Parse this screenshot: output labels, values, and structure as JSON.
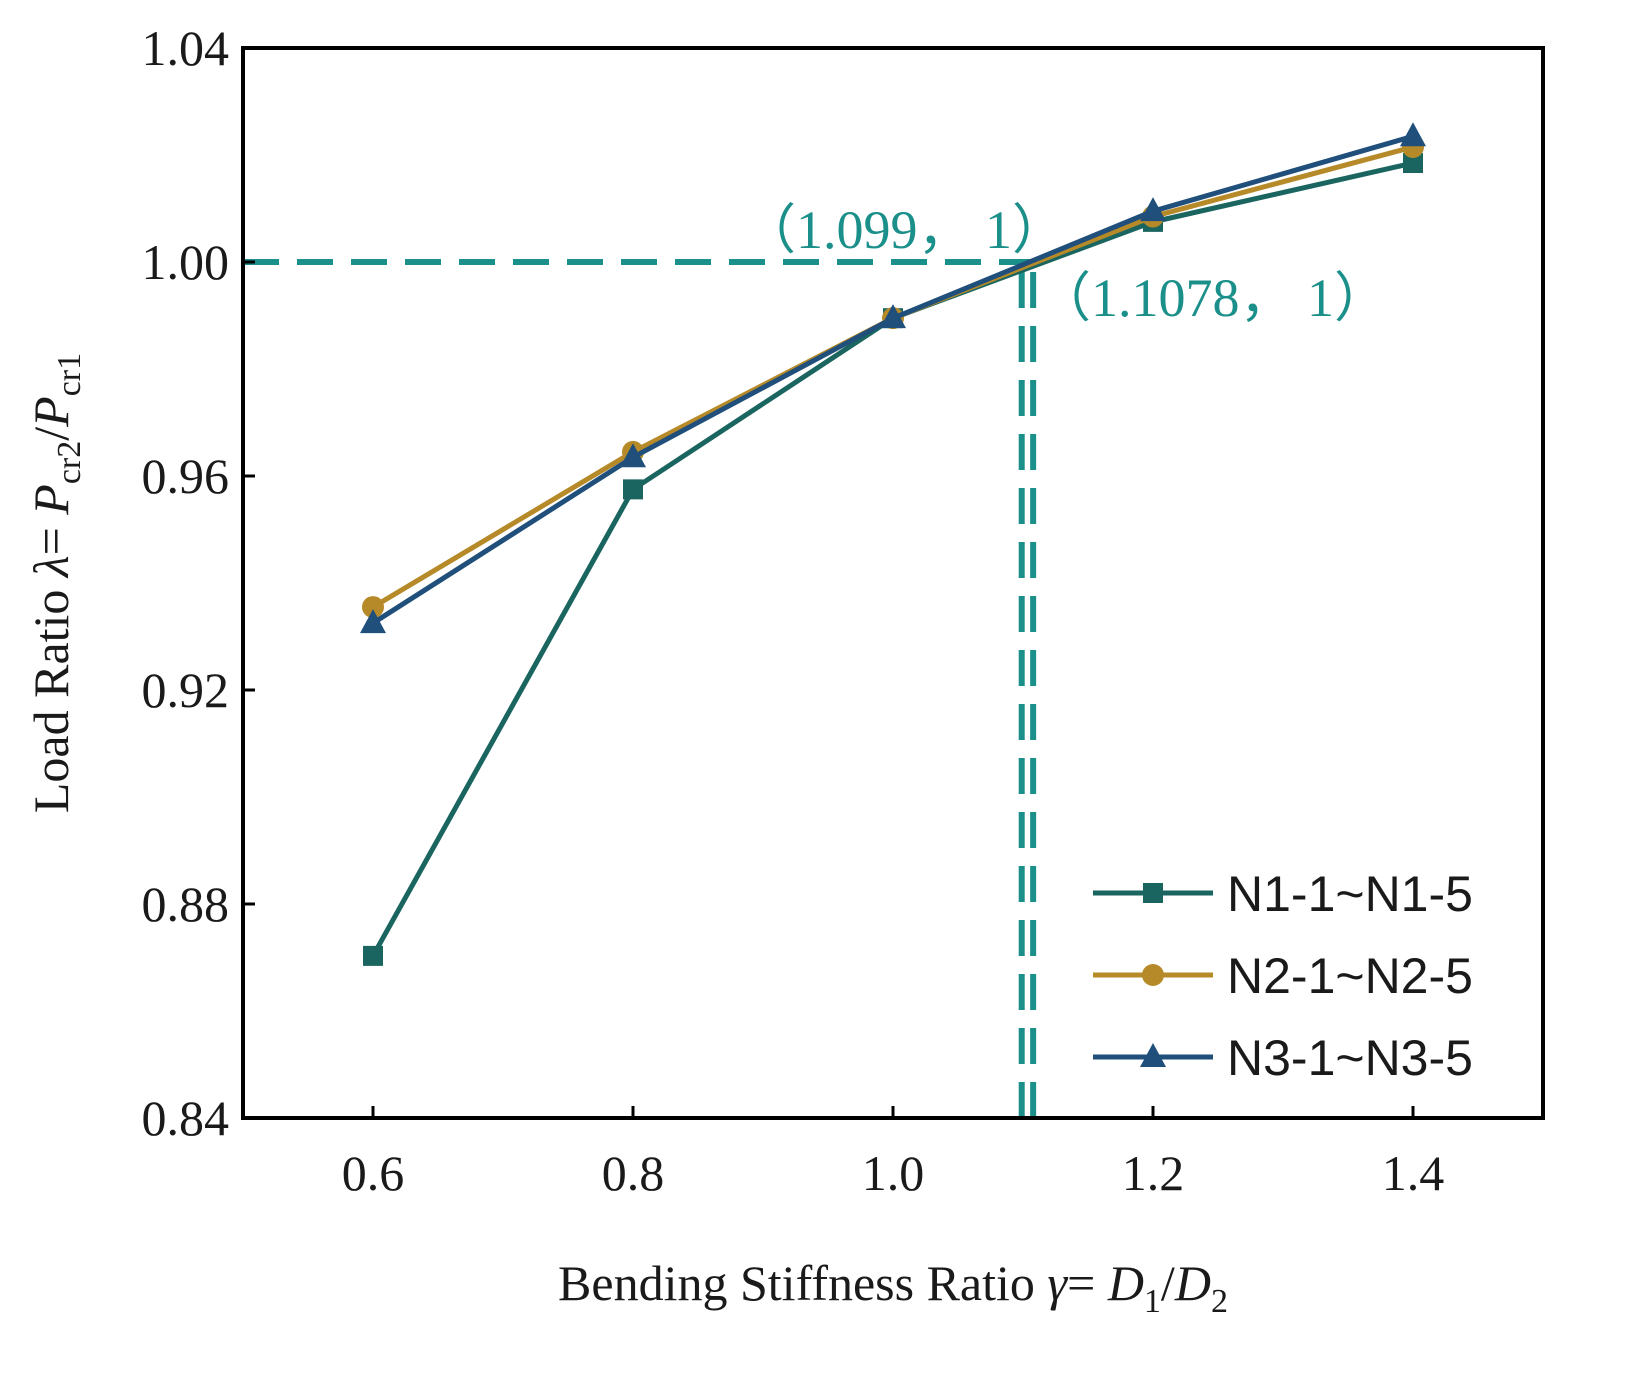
{
  "chart_data": {
    "type": "line",
    "title": "",
    "xlabel": {
      "prefix": "Bending Stiffness Ratio  ",
      "symbol": "γ",
      "eq": "= ",
      "var1": "D",
      "sub1": "1",
      "slash": "/",
      "var2": "D",
      "sub2": "2"
    },
    "ylabel": {
      "prefix": "Load Ratio ",
      "symbol": "λ",
      "eq": "= ",
      "var1": "P",
      "sub1": "cr2",
      "slash": "/",
      "var2": "P",
      "sub2": "cr1"
    },
    "xlim": [
      0.5,
      1.5
    ],
    "ylim": [
      0.84,
      1.04
    ],
    "x_ticks": [
      0.6,
      0.8,
      1.0,
      1.2,
      1.4
    ],
    "x_tick_labels": [
      "0.6",
      "0.8",
      "1.0",
      "1.2",
      "1.4"
    ],
    "y_ticks": [
      0.84,
      0.88,
      0.92,
      0.96,
      1.0,
      1.04
    ],
    "y_tick_labels": [
      "0.84",
      "0.88",
      "0.92",
      "0.96",
      "1.00",
      "1.04"
    ],
    "grid": false,
    "legend_position": "bottom-right",
    "series": [
      {
        "name": "N1-1~N1-5",
        "marker": "square",
        "color": "#1a6560",
        "x": [
          0.6,
          0.8,
          1.0,
          1.2,
          1.4
        ],
        "y": [
          0.8703,
          0.9575,
          0.9895,
          1.0075,
          1.0185
        ]
      },
      {
        "name": "N2-1~N2-5",
        "marker": "circle",
        "color": "#b68a28",
        "x": [
          0.6,
          0.8,
          1.0,
          1.2,
          1.4
        ],
        "y": [
          0.9355,
          0.9645,
          0.9895,
          1.0085,
          1.0215
        ]
      },
      {
        "name": "N3-1~N3-5",
        "marker": "triangle",
        "color": "#1f4f7a",
        "x": [
          0.6,
          0.8,
          1.0,
          1.2,
          1.4
        ],
        "y": [
          0.9325,
          0.9635,
          0.9895,
          1.0095,
          1.0235
        ]
      }
    ],
    "reference_lines": [
      {
        "type": "horizontal",
        "y": 1.0,
        "x_from": 0.5,
        "x_to": 1.1078,
        "style": "dashed",
        "color": "#1b8f8a"
      },
      {
        "type": "vertical",
        "x": 1.099,
        "y_from": 0.84,
        "y_to": 1.0,
        "style": "dashed",
        "color": "#1b8f8a"
      },
      {
        "type": "vertical",
        "x": 1.1078,
        "y_from": 0.84,
        "y_to": 1.0,
        "style": "dashed",
        "color": "#1b8f8a"
      }
    ],
    "annotations": [
      {
        "text": "（1.099， 1）",
        "x": 1.099,
        "y": 1.0,
        "color": "#1b8f8a"
      },
      {
        "text": "（1.1078， 1）",
        "x": 1.1078,
        "y": 1.0,
        "color": "#1b8f8a"
      }
    ]
  }
}
